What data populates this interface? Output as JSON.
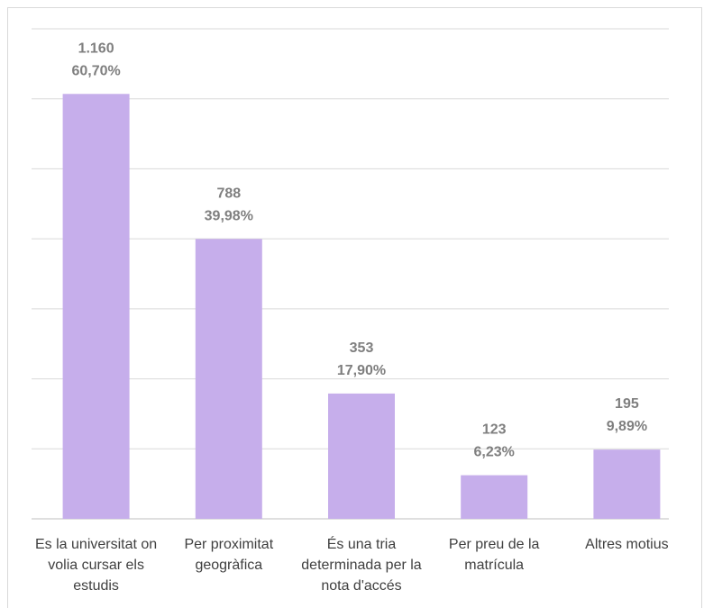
{
  "chart_data": {
    "type": "bar",
    "categories": [
      "Es la universitat on volia cursar els estudis",
      "Per proximitat geogràfica",
      "És una tria determinada per la nota d'accés",
      "Per preu de la matrícula",
      "Altres motius"
    ],
    "values": [
      60.7,
      39.98,
      17.9,
      6.23,
      9.89
    ],
    "value_labels": [
      "60,70%",
      "39,98%",
      "17,90%",
      "6,23%",
      "9,89%"
    ],
    "counts": [
      1160,
      788,
      353,
      123,
      195
    ],
    "count_labels": [
      "1.160",
      "788",
      "353",
      "123",
      "195"
    ],
    "color": "#c6aeeb",
    "ylim": [
      0,
      70
    ],
    "yticks": [
      0,
      10,
      20,
      30,
      40,
      50,
      60,
      70
    ],
    "grid": true
  }
}
